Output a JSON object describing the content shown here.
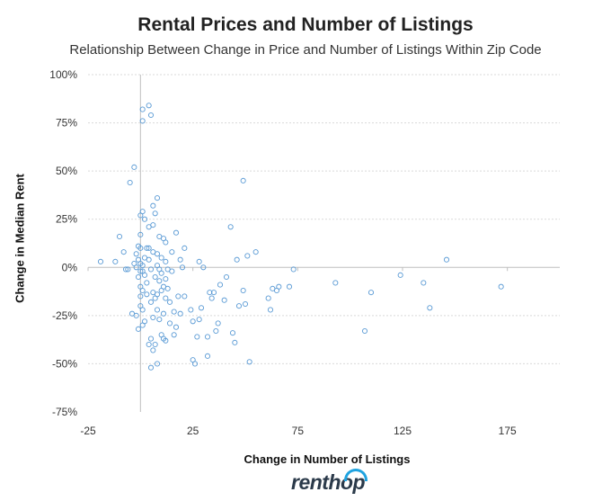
{
  "chart_data": {
    "type": "scatter",
    "title": "Rental Prices and Number of Listings",
    "subtitle": "Relationship Between Change in Price and Number of Listings Within Zip Code",
    "xlabel": "Change in Number of Listings",
    "ylabel": "Change in Median Rent",
    "xlim": [
      -25,
      200
    ],
    "ylim": [
      -75,
      100
    ],
    "xticks": [
      "-25",
      "25",
      "75",
      "125",
      "175"
    ],
    "yticks": [
      "100%",
      "75%",
      "50%",
      "25%",
      "0%",
      "-25%",
      "-50%",
      "-75%"
    ],
    "grid": true,
    "marker_color": "#5b9bd5",
    "points": [
      [
        -19,
        3
      ],
      [
        -12,
        3
      ],
      [
        -10,
        16
      ],
      [
        -8,
        8
      ],
      [
        -7,
        -1
      ],
      [
        -6,
        -1
      ],
      [
        -5,
        44
      ],
      [
        -4,
        -24
      ],
      [
        -3,
        52
      ],
      [
        -3,
        2
      ],
      [
        -2,
        7
      ],
      [
        -2,
        0
      ],
      [
        -2,
        -25
      ],
      [
        -1,
        11
      ],
      [
        -1,
        4
      ],
      [
        -1,
        -5
      ],
      [
        -1,
        -32
      ],
      [
        0,
        27
      ],
      [
        0,
        17
      ],
      [
        0,
        10
      ],
      [
        0,
        2
      ],
      [
        0,
        -2
      ],
      [
        0,
        -10
      ],
      [
        0,
        -15
      ],
      [
        0,
        -20
      ],
      [
        1,
        82
      ],
      [
        1,
        76
      ],
      [
        1,
        29
      ],
      [
        1,
        1
      ],
      [
        1,
        -2
      ],
      [
        1,
        -12
      ],
      [
        1,
        -22
      ],
      [
        1,
        -30
      ],
      [
        2,
        25
      ],
      [
        2,
        5
      ],
      [
        2,
        -4
      ],
      [
        2,
        -28
      ],
      [
        3,
        10
      ],
      [
        3,
        -8
      ],
      [
        3,
        -14
      ],
      [
        4,
        84
      ],
      [
        4,
        21
      ],
      [
        4,
        10
      ],
      [
        4,
        4
      ],
      [
        4,
        -40
      ],
      [
        5,
        79
      ],
      [
        5,
        -1
      ],
      [
        5,
        -18
      ],
      [
        5,
        -37
      ],
      [
        5,
        -52
      ],
      [
        6,
        32
      ],
      [
        6,
        22
      ],
      [
        6,
        8
      ],
      [
        6,
        -13
      ],
      [
        6,
        -26
      ],
      [
        6,
        -43
      ],
      [
        7,
        28
      ],
      [
        7,
        -5
      ],
      [
        7,
        -16
      ],
      [
        7,
        -40
      ],
      [
        8,
        36
      ],
      [
        8,
        7
      ],
      [
        8,
        1
      ],
      [
        8,
        -14
      ],
      [
        8,
        -22
      ],
      [
        8,
        -50
      ],
      [
        9,
        16
      ],
      [
        9,
        -1
      ],
      [
        9,
        -7
      ],
      [
        9,
        -27
      ],
      [
        10,
        5
      ],
      [
        10,
        -3
      ],
      [
        10,
        -12
      ],
      [
        10,
        -35
      ],
      [
        11,
        15
      ],
      [
        11,
        -10
      ],
      [
        11,
        -24
      ],
      [
        11,
        -37
      ],
      [
        12,
        13
      ],
      [
        12,
        3
      ],
      [
        12,
        -6
      ],
      [
        12,
        -16
      ],
      [
        12,
        -38
      ],
      [
        13,
        -1
      ],
      [
        13,
        -11
      ],
      [
        14,
        -18
      ],
      [
        14,
        -29
      ],
      [
        15,
        8
      ],
      [
        15,
        -2
      ],
      [
        16,
        -23
      ],
      [
        16,
        -35
      ],
      [
        17,
        18
      ],
      [
        17,
        -31
      ],
      [
        18,
        -15
      ],
      [
        19,
        4
      ],
      [
        19,
        -24
      ],
      [
        20,
        0
      ],
      [
        21,
        10
      ],
      [
        21,
        -15
      ],
      [
        24,
        -22
      ],
      [
        25,
        -28
      ],
      [
        25,
        -48
      ],
      [
        26,
        -50
      ],
      [
        27,
        -36
      ],
      [
        28,
        3
      ],
      [
        28,
        -27
      ],
      [
        29,
        -21
      ],
      [
        30,
        0
      ],
      [
        32,
        -36
      ],
      [
        32,
        -46
      ],
      [
        33,
        -13
      ],
      [
        34,
        -16
      ],
      [
        35,
        -13
      ],
      [
        36,
        -33
      ],
      [
        37,
        -29
      ],
      [
        38,
        -9
      ],
      [
        40,
        -17
      ],
      [
        41,
        -5
      ],
      [
        43,
        21
      ],
      [
        44,
        -34
      ],
      [
        45,
        -39
      ],
      [
        46,
        4
      ],
      [
        47,
        -20
      ],
      [
        49,
        45
      ],
      [
        49,
        -12
      ],
      [
        50,
        -19
      ],
      [
        51,
        6
      ],
      [
        52,
        -49
      ],
      [
        55,
        8
      ],
      [
        61,
        -16
      ],
      [
        62,
        -22
      ],
      [
        63,
        -11
      ],
      [
        65,
        -12
      ],
      [
        66,
        -10
      ],
      [
        71,
        -10
      ],
      [
        73,
        -1
      ],
      [
        93,
        -8
      ],
      [
        107,
        -33
      ],
      [
        110,
        -13
      ],
      [
        124,
        -4
      ],
      [
        135,
        -8
      ],
      [
        138,
        -21
      ],
      [
        146,
        4
      ],
      [
        172,
        -10
      ]
    ]
  },
  "branding": {
    "logo_text": "renthop",
    "logo_color": "#2b3a4a",
    "logo_arc_color": "#1fa3e0"
  }
}
